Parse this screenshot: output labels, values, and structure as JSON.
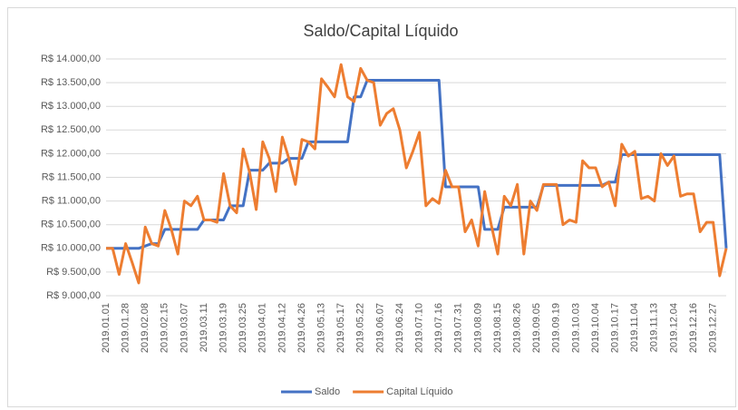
{
  "chart_data": {
    "type": "line",
    "title": "Saldo/Capital Líquido",
    "categories": [
      "2019.01.01",
      null,
      null,
      "2019.01.28",
      null,
      null,
      "2019.02.08",
      null,
      null,
      "2019.02.15",
      null,
      null,
      "2019.03.07",
      null,
      null,
      "2019.03.11",
      null,
      null,
      "2019.03.19",
      null,
      null,
      "2019.03.25",
      null,
      null,
      "2019.04.01",
      null,
      null,
      "2019.04.12",
      null,
      null,
      "2019.04.26",
      null,
      null,
      "2019.05.13",
      null,
      null,
      "2019.05.17",
      null,
      null,
      "2019.05.22",
      null,
      null,
      "2019.06.07",
      null,
      null,
      "2019.06.24",
      null,
      null,
      "2019.07.10",
      null,
      null,
      "2019.07.16",
      null,
      null,
      "2019.07.31",
      null,
      null,
      "2019.08.09",
      null,
      null,
      "2019.08.15",
      null,
      null,
      "2019.08.26",
      null,
      null,
      "2019.09.05",
      null,
      null,
      "2019.09.19",
      null,
      null,
      "2019.10.03",
      null,
      null,
      "2019.10.04",
      null,
      null,
      "2019.10.17",
      null,
      null,
      "2019.11.04",
      null,
      null,
      "2019.11.13",
      null,
      null,
      "2019.12.04",
      null,
      null,
      "2019.12.16",
      null,
      null,
      "2019.12.27",
      null,
      null
    ],
    "series": [
      {
        "name": "Saldo",
        "color": "#4472c4",
        "values": [
          10000,
          10000,
          10000,
          10000,
          10000,
          10000,
          10050,
          10100,
          10100,
          10400,
          10400,
          10400,
          10400,
          10400,
          10400,
          10600,
          10600,
          10600,
          10600,
          10900,
          10900,
          10900,
          11650,
          11650,
          11650,
          11800,
          11800,
          11800,
          11900,
          11900,
          11900,
          12250,
          12250,
          12250,
          12250,
          12250,
          12250,
          12250,
          13200,
          13200,
          13550,
          13550,
          13550,
          13550,
          13550,
          13550,
          13550,
          13550,
          13550,
          13550,
          13550,
          13550,
          11300,
          11300,
          11300,
          11300,
          11300,
          11300,
          10400,
          10400,
          10400,
          10870,
          10870,
          10870,
          10870,
          10870,
          10870,
          11330,
          11330,
          11330,
          11330,
          11330,
          11330,
          11330,
          11330,
          11330,
          11330,
          11400,
          11400,
          11980,
          11980,
          11980,
          11980,
          11980,
          11980,
          11980,
          11980,
          11980,
          11980,
          11980,
          11980,
          11980,
          11980,
          11980,
          11980,
          10000
        ]
      },
      {
        "name": "Capital Líquido",
        "color": "#ed7d31",
        "values": [
          10000,
          10000,
          9450,
          10100,
          9700,
          9270,
          10450,
          10100,
          10050,
          10800,
          10400,
          9880,
          11000,
          10900,
          11100,
          10600,
          10600,
          10550,
          11580,
          10900,
          10750,
          12100,
          11600,
          10820,
          12250,
          11900,
          11200,
          12350,
          11900,
          11350,
          12300,
          12250,
          12100,
          13580,
          13400,
          13200,
          13880,
          13200,
          13100,
          13800,
          13550,
          13500,
          12600,
          12850,
          12950,
          12500,
          11700,
          12050,
          12450,
          10900,
          11050,
          10950,
          11650,
          11300,
          11300,
          10350,
          10600,
          10050,
          11200,
          10500,
          9880,
          11100,
          10900,
          11350,
          9880,
          11000,
          10800,
          11350,
          11350,
          11350,
          10500,
          10600,
          10550,
          11850,
          11700,
          11700,
          11300,
          11400,
          10900,
          12200,
          11950,
          12050,
          11050,
          11100,
          11000,
          12000,
          11750,
          11950,
          11100,
          11150,
          11150,
          10350,
          10550,
          10550,
          9420,
          10000
        ]
      }
    ],
    "ylim": [
      9000,
      14000
    ],
    "yticks": [
      {
        "value": 9000,
        "label": "R$ 9.000,00"
      },
      {
        "value": 9500,
        "label": "R$ 9.500,00"
      },
      {
        "value": 10000,
        "label": "R$ 10.000,00"
      },
      {
        "value": 10500,
        "label": "R$ 10.500,00"
      },
      {
        "value": 11000,
        "label": "R$ 11.000,00"
      },
      {
        "value": 11500,
        "label": "R$ 11.500,00"
      },
      {
        "value": 12000,
        "label": "R$ 12.000,00"
      },
      {
        "value": 12500,
        "label": "R$ 12.500,00"
      },
      {
        "value": 13000,
        "label": "R$ 13.000,00"
      },
      {
        "value": 13500,
        "label": "R$ 13.500,00"
      },
      {
        "value": 14000,
        "label": "R$ 14.000,00"
      }
    ],
    "grid": true,
    "legend": "bottom"
  }
}
